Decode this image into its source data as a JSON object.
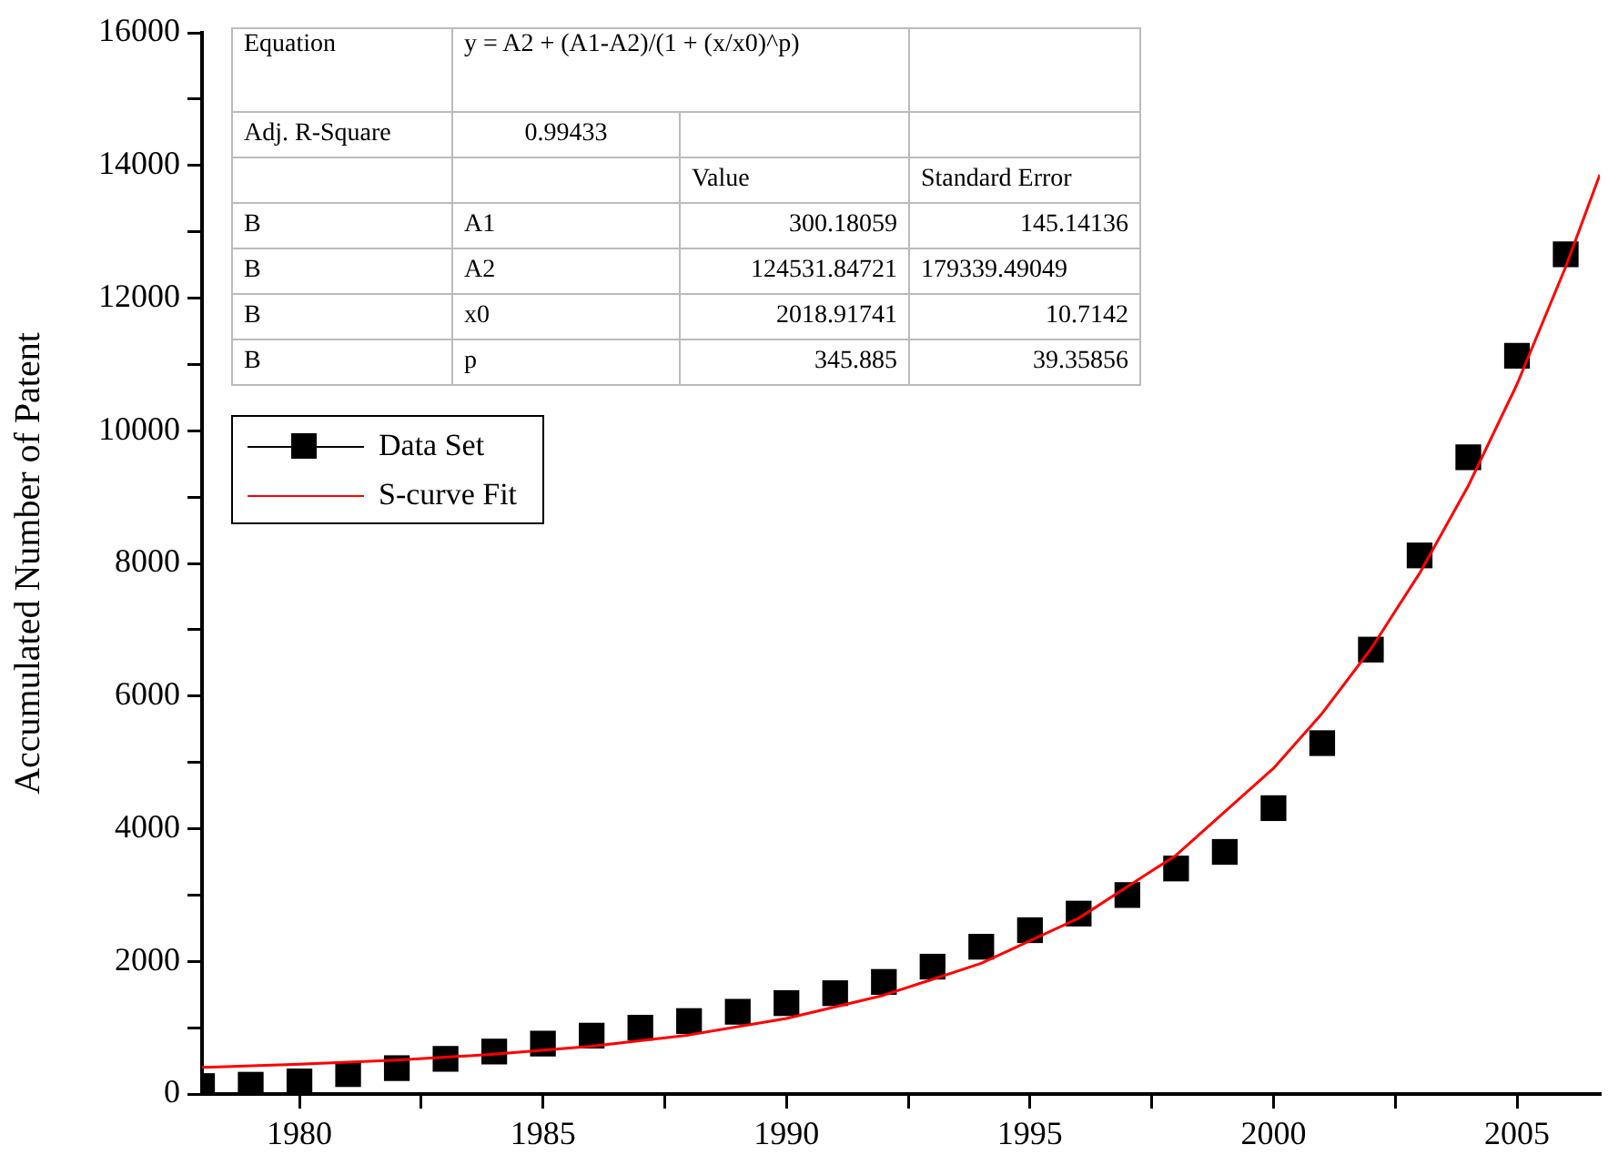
{
  "chart_data": {
    "type": "scatter",
    "ylabel": "Accumulated Number of Patent",
    "xlim": [
      1978,
      2006.7
    ],
    "xticks": [
      {
        "value": 1980,
        "label": "1980"
      },
      {
        "value": 1982.5,
        "label": null
      },
      {
        "value": 1985,
        "label": "1985"
      },
      {
        "value": 1987.5,
        "label": null
      },
      {
        "value": 1990,
        "label": "1990"
      },
      {
        "value": 1992.5,
        "label": null
      },
      {
        "value": 1995,
        "label": "1995"
      },
      {
        "value": 1997.5,
        "label": null
      },
      {
        "value": 2000,
        "label": "2000"
      },
      {
        "value": 2002.5,
        "label": null
      },
      {
        "value": 2005,
        "label": "2005"
      }
    ],
    "ylim": [
      0,
      16000
    ],
    "yticks": [
      0,
      {
        "value": 1000,
        "label": null
      },
      2000,
      {
        "value": 3000,
        "label": null
      },
      4000,
      {
        "value": 5000,
        "label": null
      },
      6000,
      {
        "value": 7000,
        "label": null
      },
      8000,
      {
        "value": 9000,
        "label": null
      },
      10000,
      {
        "value": 11000,
        "label": null
      },
      12000,
      {
        "value": 13000,
        "label": null
      },
      14000,
      {
        "value": 15000,
        "label": null
      },
      16000
    ],
    "grid": false,
    "legend": "top left",
    "series": [
      {
        "name": "Data Set",
        "marker": "square",
        "color": "#000000",
        "x": [
          1978,
          1979,
          1980,
          1981,
          1982,
          1983,
          1984,
          1985,
          1986,
          1987,
          1988,
          1989,
          1990,
          1991,
          1992,
          1993,
          1994,
          1995,
          1996,
          1997,
          1998,
          1999,
          2000,
          2001,
          2002,
          2003,
          2004,
          2005,
          2006
        ],
        "values": [
          120,
          140,
          190,
          300,
          390,
          530,
          640,
          760,
          880,
          1000,
          1100,
          1240,
          1370,
          1520,
          1690,
          1920,
          2220,
          2470,
          2720,
          3000,
          3400,
          3650,
          4310,
          5290,
          6700,
          8120,
          9600,
          11130,
          12660
        ]
      },
      {
        "name": "S-curve Fit",
        "type": "line",
        "marker": "none",
        "color": "#ff0000",
        "x": [
          1978,
          1980,
          1982,
          1984,
          1986,
          1988,
          1990,
          1992,
          1994,
          1996,
          1998,
          2000,
          2001,
          2002,
          2003,
          2004,
          2005,
          2006,
          2006.7
        ],
        "values": [
          400,
          450,
          510,
          600,
          720,
          890,
          1140,
          1490,
          1970,
          2650,
          3600,
          4910,
          5740,
          6710,
          7850,
          9170,
          10700,
          12470,
          13860
        ]
      }
    ],
    "annotations": [
      "Equation",
      "y = A2 + (A1-A2)/(1 + (x/x0)^p)",
      "Adj. R-Square",
      "0.99433",
      "Value",
      "Standard Error",
      "B",
      "A1",
      "300.18059",
      "145.14136",
      "B",
      "A2",
      "124531.84721",
      "179339.49049",
      "B",
      "x0",
      "2018.91741",
      "10.7142",
      "B",
      "p",
      "345.885",
      "39.35856"
    ]
  }
}
